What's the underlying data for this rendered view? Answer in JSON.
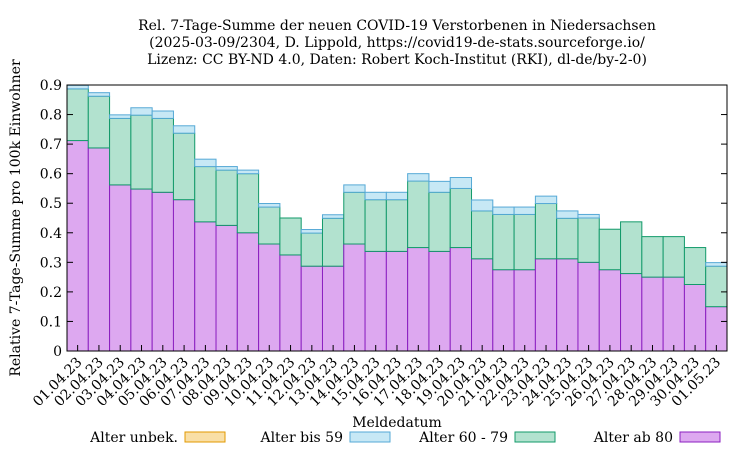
{
  "title_lines": [
    "Rel. 7-Tage-Summe der neuen COVID-19 Verstorbenen in Niedersachsen",
    "(2025-03-09/2304, D. Lippold, https://covid19-de-stats.sourceforge.io/",
    "Lizenz: CC BY-ND 4.0, Daten: Robert Koch-Institut (RKI), dl-de/by-2-0)"
  ],
  "chart_data": {
    "type": "bar",
    "stacked": true,
    "xlabel": "Meldedatum",
    "ylabel": "Relative 7-Tage-Summe pro 100k Einwohner",
    "ylim": [
      0,
      0.9
    ],
    "yticks": [
      "0",
      "0.1",
      "0.2",
      "0.3",
      "0.4",
      "0.5",
      "0.6",
      "0.7",
      "0.8",
      "0.9"
    ],
    "grid": false,
    "legend_position": "bottom",
    "categories": [
      "01.04.23",
      "02.04.23",
      "03.04.23",
      "04.04.23",
      "05.04.23",
      "06.04.23",
      "07.04.23",
      "08.04.23",
      "09.04.23",
      "10.04.23",
      "11.04.23",
      "12.04.23",
      "13.04.23",
      "14.04.23",
      "15.04.23",
      "16.04.23",
      "17.04.23",
      "18.04.23",
      "19.04.23",
      "20.04.23",
      "21.04.23",
      "22.04.23",
      "23.04.23",
      "24.04.23",
      "25.04.23",
      "26.04.23",
      "27.04.23",
      "28.04.23",
      "29.04.23",
      "30.04.23",
      "01.05.23"
    ],
    "series": [
      {
        "name": "Alter ab 80",
        "fill": "#dda8f0",
        "stroke": "#8b1fc0",
        "values": [
          0.712,
          0.687,
          0.562,
          0.548,
          0.537,
          0.512,
          0.437,
          0.425,
          0.4,
          0.362,
          0.325,
          0.287,
          0.287,
          0.362,
          0.337,
          0.337,
          0.35,
          0.337,
          0.35,
          0.312,
          0.275,
          0.275,
          0.312,
          0.312,
          0.3,
          0.275,
          0.262,
          0.25,
          0.25,
          0.225,
          0.15
        ]
      },
      {
        "name": "Alter 60 - 79",
        "fill": "#b2e2cf",
        "stroke": "#129a6a",
        "values": [
          0.175,
          0.175,
          0.225,
          0.25,
          0.25,
          0.225,
          0.187,
          0.187,
          0.2,
          0.125,
          0.125,
          0.112,
          0.162,
          0.175,
          0.175,
          0.175,
          0.225,
          0.2,
          0.2,
          0.162,
          0.187,
          0.187,
          0.187,
          0.137,
          0.15,
          0.137,
          0.175,
          0.137,
          0.137,
          0.125,
          0.137
        ]
      },
      {
        "name": "Alter bis 59",
        "fill": "#c7e8f5",
        "stroke": "#56a9d6",
        "values": [
          0.012,
          0.012,
          0.012,
          0.025,
          0.025,
          0.025,
          0.025,
          0.012,
          0.012,
          0.012,
          0.0,
          0.012,
          0.012,
          0.025,
          0.025,
          0.025,
          0.025,
          0.037,
          0.037,
          0.037,
          0.025,
          0.025,
          0.025,
          0.025,
          0.012,
          0.0,
          0.0,
          0.0,
          0.0,
          0.0,
          0.012
        ]
      },
      {
        "name": "Alter unbek.",
        "fill": "#f9dfa6",
        "stroke": "#e29a00",
        "values": [
          0,
          0,
          0,
          0,
          0,
          0,
          0,
          0,
          0,
          0,
          0,
          0,
          0,
          0,
          0,
          0,
          0,
          0,
          0,
          0,
          0,
          0,
          0,
          0,
          0,
          0,
          0,
          0,
          0,
          0,
          0
        ]
      }
    ],
    "legend_order": [
      "Alter unbek.",
      "Alter bis 59",
      "Alter 60 - 79",
      "Alter ab 80"
    ]
  }
}
